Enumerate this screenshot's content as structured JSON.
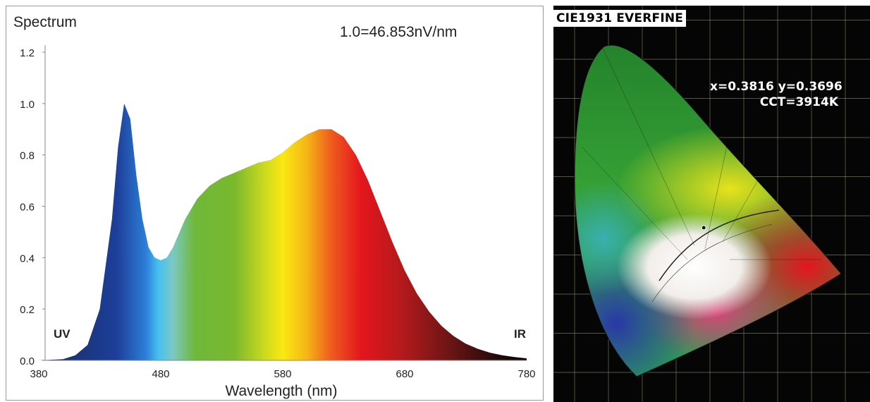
{
  "chart_data": [
    {
      "type": "area",
      "title": "Spectrum",
      "annotation": "1.0=46.853nV/nm",
      "xlabel": "Wavelength (nm)",
      "ylabel": "",
      "xlim": [
        380,
        780
      ],
      "ylim": [
        0,
        1.2
      ],
      "xticks": [
        "380",
        "480",
        "580",
        "680",
        "780"
      ],
      "yticks": [
        "0.0",
        "0.2",
        "0.4",
        "0.6",
        "0.8",
        "1.0",
        "1.2"
      ],
      "region_labels": {
        "left": "UV",
        "right": "IR"
      },
      "grid": false,
      "series": [
        {
          "x": [
            380,
            400,
            410,
            420,
            430,
            440,
            445,
            450,
            455,
            460,
            465,
            470,
            475,
            480,
            485,
            490,
            500,
            510,
            520,
            530,
            540,
            550,
            560,
            570,
            580,
            590,
            600,
            610,
            620,
            630,
            640,
            650,
            660,
            670,
            680,
            690,
            700,
            710,
            720,
            730,
            740,
            750,
            760,
            770,
            780
          ],
          "values": [
            0,
            0.005,
            0.02,
            0.06,
            0.2,
            0.55,
            0.83,
            1.0,
            0.94,
            0.72,
            0.55,
            0.44,
            0.4,
            0.39,
            0.4,
            0.44,
            0.55,
            0.63,
            0.68,
            0.71,
            0.73,
            0.75,
            0.77,
            0.78,
            0.81,
            0.85,
            0.88,
            0.9,
            0.9,
            0.87,
            0.8,
            0.7,
            0.58,
            0.46,
            0.35,
            0.26,
            0.19,
            0.135,
            0.095,
            0.065,
            0.045,
            0.03,
            0.02,
            0.013,
            0.008
          ]
        }
      ]
    },
    {
      "type": "scatter",
      "title": "CIE1931 EVERFINE",
      "point": {
        "x": 0.3816,
        "y": 0.3696
      },
      "readout_line1": "x=0.3816 y=0.3696",
      "readout_line2": "CCT=3914K"
    }
  ]
}
